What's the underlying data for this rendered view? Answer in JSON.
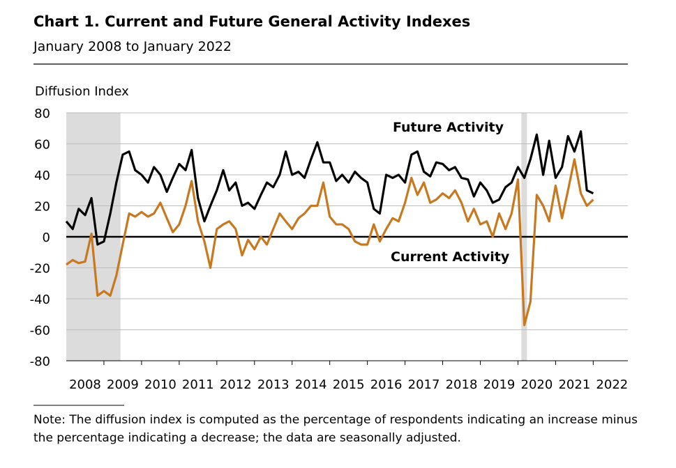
{
  "chart_data": {
    "type": "line",
    "title": "Chart 1. Current and Future General Activity Indexes",
    "subtitle": "January 2008 to January 2022",
    "y_label": "Diffusion Index",
    "note": "Note: The diffusion index is computed as the percentage of respondents indicating an increase minus the percentage indicating a decrease; the data are seasonally adjusted.",
    "annotations": [
      "Future Activity",
      "Current Activity"
    ],
    "ylim": [
      -80,
      80
    ],
    "yticks": [
      -80,
      -60,
      -40,
      -20,
      0,
      20,
      40,
      60,
      80
    ],
    "xlim": [
      2008,
      2022.92
    ],
    "xticks": [
      2009,
      2010,
      2011,
      2012,
      2013,
      2014,
      2015,
      2016,
      2017,
      2018,
      2019,
      2020,
      2021,
      2022
    ],
    "year_labels": [
      "2008",
      "2009",
      "2010",
      "2011",
      "2012",
      "2013",
      "2014",
      "2015",
      "2016",
      "2017",
      "2018",
      "2019",
      "2020",
      "2021",
      "2022"
    ],
    "grid": true,
    "shaded_periods": [
      [
        2008,
        2009.44
      ],
      [
        2020.09,
        2020.24
      ]
    ],
    "x": [
      2008,
      2008.17,
      2008.33,
      2008.5,
      2008.67,
      2008.83,
      2009,
      2009.17,
      2009.33,
      2009.5,
      2009.67,
      2009.83,
      2010,
      2010.17,
      2010.33,
      2010.5,
      2010.67,
      2010.83,
      2011,
      2011.17,
      2011.33,
      2011.5,
      2011.67,
      2011.83,
      2012,
      2012.17,
      2012.33,
      2012.5,
      2012.67,
      2012.83,
      2013,
      2013.17,
      2013.33,
      2013.5,
      2013.67,
      2013.83,
      2014,
      2014.17,
      2014.33,
      2014.5,
      2014.67,
      2014.83,
      2015,
      2015.17,
      2015.33,
      2015.5,
      2015.67,
      2015.83,
      2016,
      2016.17,
      2016.33,
      2016.5,
      2016.67,
      2016.83,
      2017,
      2017.17,
      2017.33,
      2017.5,
      2017.67,
      2017.83,
      2018,
      2018.17,
      2018.33,
      2018.5,
      2018.67,
      2018.83,
      2019,
      2019.17,
      2019.33,
      2019.5,
      2019.67,
      2019.83,
      2020,
      2020.17,
      2020.33,
      2020.5,
      2020.67,
      2020.83,
      2021,
      2021.17,
      2021.33,
      2021.5,
      2021.67,
      2021.83,
      2022
    ],
    "series": [
      {
        "name": "Future Activity",
        "color": "#000000",
        "values": [
          10,
          5,
          18,
          14,
          25,
          -5,
          -3,
          15,
          35,
          53,
          55,
          43,
          40,
          35,
          45,
          40,
          29,
          38,
          47,
          43,
          56,
          25,
          10,
          20,
          30,
          43,
          30,
          35,
          20,
          22,
          18,
          27,
          35,
          32,
          40,
          55,
          40,
          42,
          38,
          50,
          61,
          48,
          48,
          36,
          40,
          35,
          42,
          38,
          35,
          18,
          15,
          40,
          38,
          40,
          35,
          53,
          55,
          42,
          39,
          48,
          47,
          43,
          45,
          38,
          37,
          26,
          35,
          30,
          22,
          24,
          32,
          35,
          45,
          38,
          50,
          66,
          40,
          62,
          38,
          45,
          65,
          55,
          68,
          30,
          28
        ]
      },
      {
        "name": "Current Activity",
        "color": "#C8781E",
        "values": [
          -18,
          -15,
          -17,
          -16,
          2,
          -38,
          -35,
          -38,
          -25,
          -5,
          15,
          13,
          16,
          13,
          15,
          22,
          12,
          3,
          8,
          20,
          36,
          10,
          -3,
          -20,
          5,
          8,
          10,
          5,
          -12,
          -2,
          -8,
          0,
          -5,
          5,
          15,
          10,
          5,
          12,
          15,
          20,
          20,
          35,
          13,
          8,
          8,
          5,
          -3,
          -5,
          -5,
          8,
          -3,
          5,
          12,
          10,
          22,
          38,
          27,
          35,
          22,
          24,
          28,
          25,
          30,
          22,
          10,
          18,
          8,
          10,
          0,
          15,
          5,
          15,
          37,
          -57,
          -42,
          27,
          20,
          10,
          33,
          12,
          30,
          50,
          28,
          20,
          24
        ]
      }
    ]
  }
}
